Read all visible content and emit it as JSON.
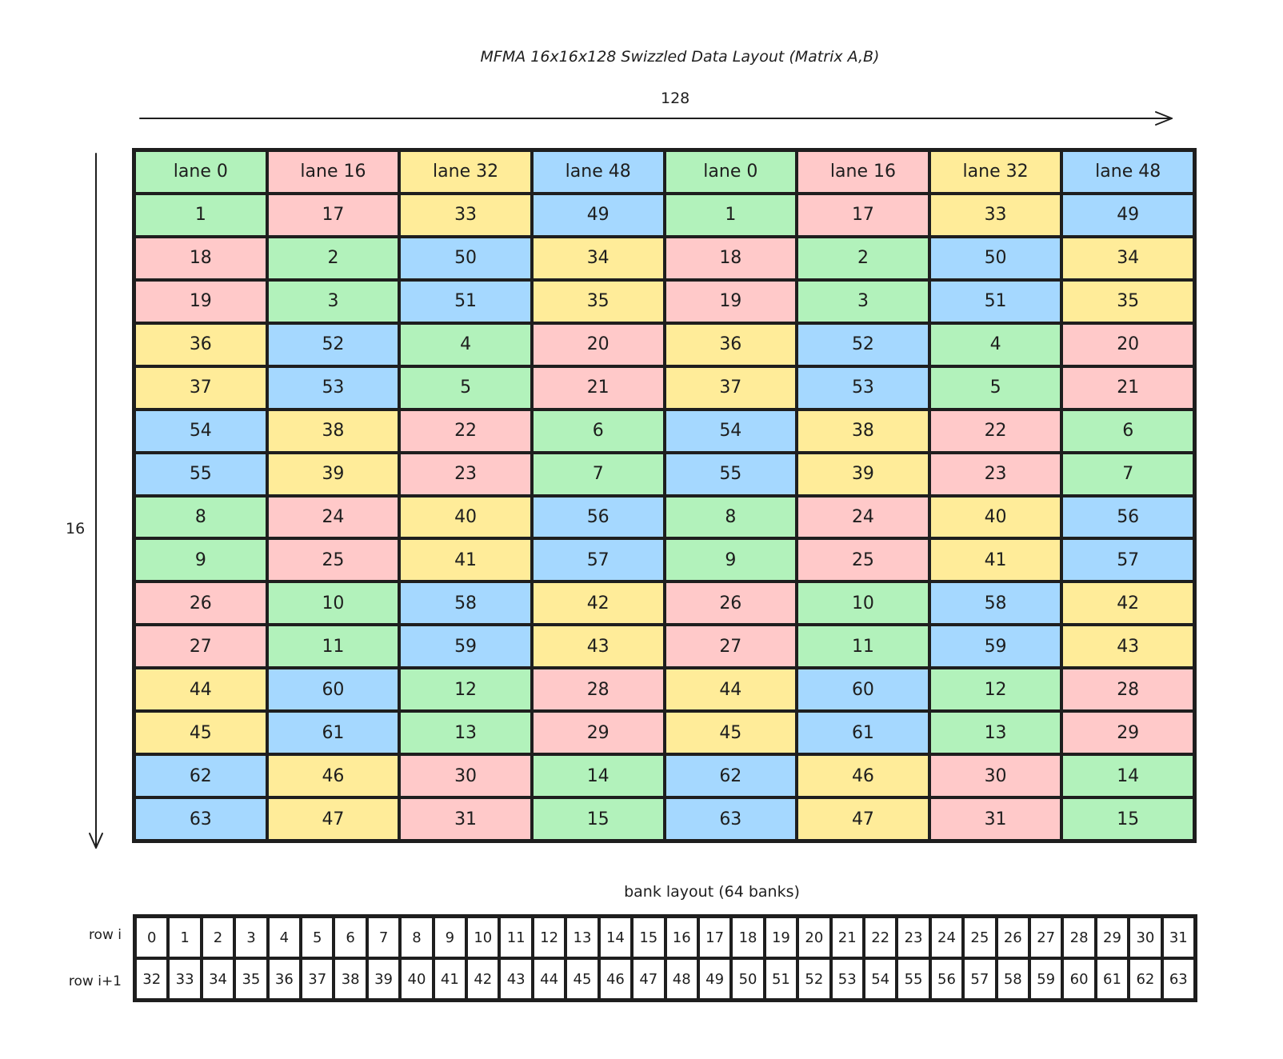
{
  "title": "MFMA 16x16x128 Swizzled Data Layout (Matrix A,B)",
  "width_label": "128",
  "height_label": "16",
  "colors": {
    "green": "#b2f2bb",
    "pink": "#ffc9c9",
    "yellow": "#ffec99",
    "blue": "#a5d8ff"
  },
  "header": [
    "lane 0",
    "lane 16",
    "lane 32",
    "lane 48",
    "lane 0",
    "lane 16",
    "lane 32",
    "lane 48"
  ],
  "rows": [
    [
      "1",
      "17",
      "33",
      "49",
      "1",
      "17",
      "33",
      "49"
    ],
    [
      "18",
      "2",
      "50",
      "34",
      "18",
      "2",
      "50",
      "34"
    ],
    [
      "19",
      "3",
      "51",
      "35",
      "19",
      "3",
      "51",
      "35"
    ],
    [
      "36",
      "52",
      "4",
      "20",
      "36",
      "52",
      "4",
      "20"
    ],
    [
      "37",
      "53",
      "5",
      "21",
      "37",
      "53",
      "5",
      "21"
    ],
    [
      "54",
      "38",
      "22",
      "6",
      "54",
      "38",
      "22",
      "6"
    ],
    [
      "55",
      "39",
      "23",
      "7",
      "55",
      "39",
      "23",
      "7"
    ],
    [
      "8",
      "24",
      "40",
      "56",
      "8",
      "24",
      "40",
      "56"
    ],
    [
      "9",
      "25",
      "41",
      "57",
      "9",
      "25",
      "41",
      "57"
    ],
    [
      "26",
      "10",
      "58",
      "42",
      "26",
      "10",
      "58",
      "42"
    ],
    [
      "27",
      "11",
      "59",
      "43",
      "27",
      "11",
      "59",
      "43"
    ],
    [
      "44",
      "60",
      "12",
      "28",
      "44",
      "60",
      "12",
      "28"
    ],
    [
      "45",
      "61",
      "13",
      "29",
      "45",
      "61",
      "13",
      "29"
    ],
    [
      "62",
      "46",
      "30",
      "14",
      "62",
      "46",
      "30",
      "14"
    ],
    [
      "63",
      "47",
      "31",
      "15",
      "63",
      "47",
      "31",
      "15"
    ]
  ],
  "bank_layout": {
    "title": "bank layout (64 banks)",
    "row_labels": [
      "row i",
      "row i+1"
    ],
    "rows": [
      [
        "0",
        "1",
        "2",
        "3",
        "4",
        "5",
        "6",
        "7",
        "8",
        "9",
        "10",
        "11",
        "12",
        "13",
        "14",
        "15",
        "16",
        "17",
        "18",
        "19",
        "20",
        "21",
        "22",
        "23",
        "24",
        "25",
        "26",
        "27",
        "28",
        "29",
        "30",
        "31"
      ],
      [
        "32",
        "33",
        "34",
        "35",
        "36",
        "37",
        "38",
        "39",
        "40",
        "41",
        "42",
        "43",
        "44",
        "45",
        "46",
        "47",
        "48",
        "49",
        "50",
        "51",
        "52",
        "53",
        "54",
        "55",
        "56",
        "57",
        "58",
        "59",
        "60",
        "61",
        "62",
        "63"
      ]
    ]
  }
}
